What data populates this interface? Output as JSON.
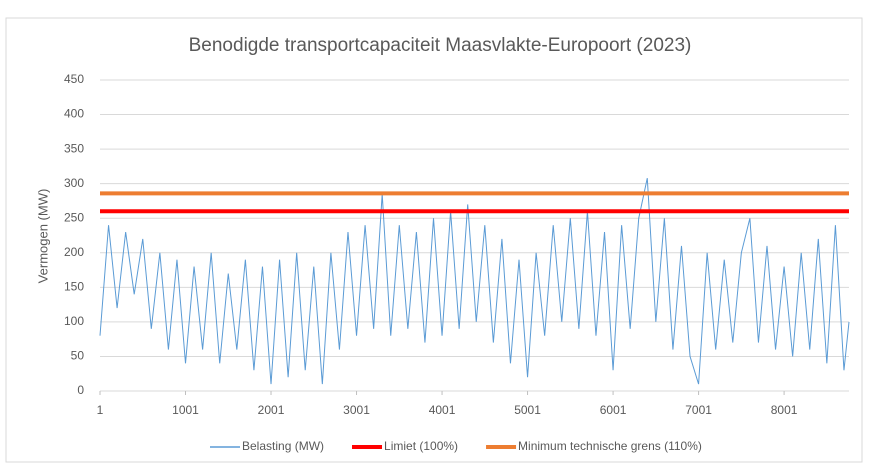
{
  "chart_data": {
    "type": "line",
    "title": "Benodigde transportcapaciteit Maasvlakte-Europoort (2023)",
    "y_label": "Vermogen (MW)",
    "x": [
      1,
      101,
      201,
      301,
      401,
      501,
      601,
      701,
      801,
      901,
      1001,
      1101,
      1201,
      1301,
      1401,
      1501,
      1601,
      1701,
      1801,
      1901,
      2001,
      2101,
      2201,
      2301,
      2401,
      2501,
      2601,
      2701,
      2801,
      2901,
      3001,
      3101,
      3201,
      3301,
      3401,
      3501,
      3601,
      3701,
      3801,
      3901,
      4001,
      4101,
      4201,
      4301,
      4401,
      4501,
      4601,
      4701,
      4801,
      4901,
      5001,
      5101,
      5201,
      5301,
      5401,
      5501,
      5601,
      5701,
      5801,
      5901,
      6001,
      6101,
      6201,
      6301,
      6401,
      6501,
      6601,
      6701,
      6801,
      6901,
      7001,
      7101,
      7201,
      7301,
      7401,
      7501,
      7601,
      7701,
      7801,
      7901,
      8001,
      8101,
      8201,
      8301,
      8401,
      8501,
      8601,
      8701,
      8760
    ],
    "series": [
      {
        "name": "Belasting (MW)",
        "color": "#5b9bd5",
        "values": [
          80,
          240,
          120,
          230,
          140,
          220,
          90,
          200,
          60,
          190,
          40,
          180,
          60,
          200,
          40,
          170,
          60,
          190,
          30,
          180,
          10,
          190,
          20,
          200,
          30,
          180,
          10,
          200,
          60,
          230,
          80,
          240,
          90,
          285,
          80,
          240,
          90,
          230,
          70,
          250,
          80,
          260,
          90,
          270,
          100,
          240,
          70,
          220,
          40,
          190,
          20,
          200,
          80,
          240,
          100,
          250,
          90,
          260,
          80,
          230,
          30,
          240,
          90,
          250,
          308,
          100,
          250,
          60,
          210,
          50,
          10,
          200,
          60,
          190,
          70,
          200,
          250,
          70,
          210,
          60,
          180,
          50,
          200,
          60,
          220,
          40,
          240,
          30,
          100
        ]
      }
    ],
    "reference_lines": [
      {
        "name": "Limiet (100%)",
        "color": "#ff0000",
        "value": 260
      },
      {
        "name": "Minimum technische grens (110%)",
        "color": "#ed7d31",
        "value": 286
      }
    ],
    "xlim": [
      1,
      8760
    ],
    "xticks": [
      1,
      1001,
      2001,
      3001,
      4001,
      5001,
      6001,
      7001,
      8001
    ],
    "ylim": [
      0,
      450
    ],
    "yticks": [
      0,
      50,
      100,
      150,
      200,
      250,
      300,
      350,
      400,
      450
    ],
    "grid": true
  }
}
